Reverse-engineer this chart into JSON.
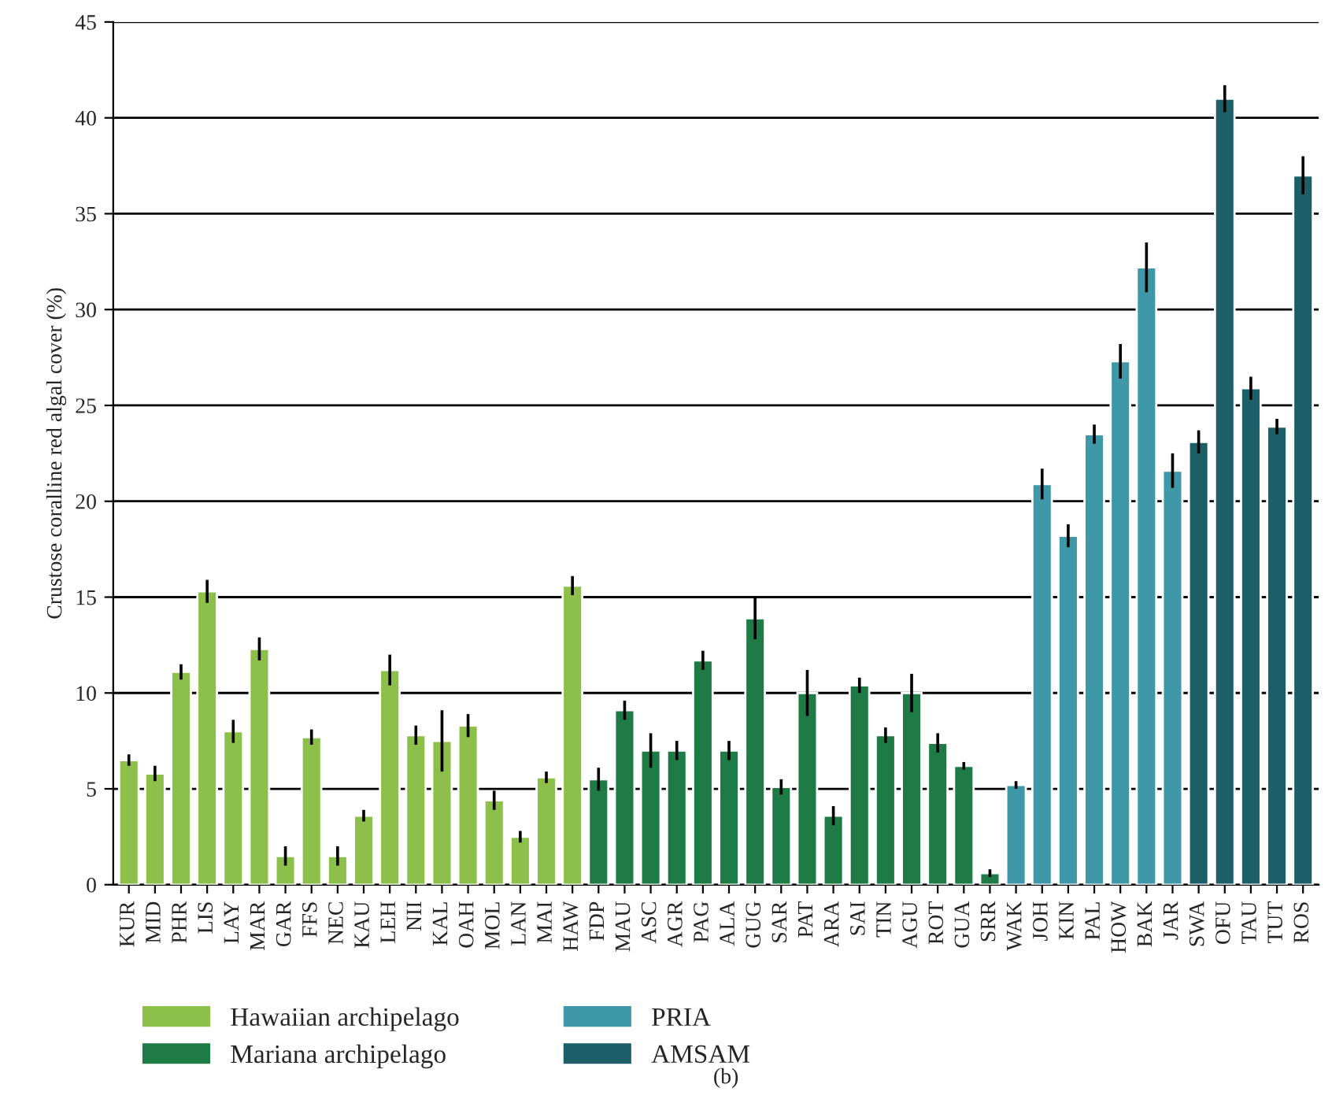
{
  "chart_data": {
    "type": "bar",
    "ylabel": "Crustose coralline red algal cover (%)",
    "annotations": [
      "(b)"
    ],
    "categories": [
      "KUR",
      "MID",
      "PHR",
      "LIS",
      "LAY",
      "MAR",
      "GAR",
      "FFS",
      "NEC",
      "KAU",
      "LEH",
      "NII",
      "KAL",
      "OAH",
      "MOL",
      "LAN",
      "MAI",
      "HAW",
      "FDP",
      "MAU",
      "ASC",
      "AGR",
      "PAG",
      "ALA",
      "GUG",
      "SAR",
      "PAT",
      "ARA",
      "SAI",
      "TIN",
      "AGU",
      "ROT",
      "GUA",
      "SRR",
      "WAK",
      "JOH",
      "KIN",
      "PAL",
      "HOW",
      "BAK",
      "JAR",
      "SWA",
      "OFU",
      "TAU",
      "TUT",
      "ROS"
    ],
    "series": [
      {
        "name": "Hawaiian archipelago",
        "color": "#8dc04a",
        "values": [
          6.5,
          5.8,
          11.1,
          15.3,
          8.0,
          12.3,
          1.5,
          7.7,
          1.5,
          3.6,
          11.2,
          7.8,
          7.5,
          8.3,
          4.4,
          2.5,
          5.6,
          15.6,
          null,
          null,
          null,
          null,
          null,
          null,
          null,
          null,
          null,
          null,
          null,
          null,
          null,
          null,
          null,
          null,
          null,
          null,
          null,
          null,
          null,
          null,
          null,
          null,
          null,
          null,
          null,
          null
        ],
        "errors": [
          0.3,
          0.4,
          0.4,
          0.6,
          0.6,
          0.6,
          0.5,
          0.4,
          0.5,
          0.3,
          0.8,
          0.5,
          1.6,
          0.6,
          0.5,
          0.3,
          0.3,
          0.5,
          null,
          null,
          null,
          null,
          null,
          null,
          null,
          null,
          null,
          null,
          null,
          null,
          null,
          null,
          null,
          null,
          null,
          null,
          null,
          null,
          null,
          null,
          null,
          null,
          null,
          null,
          null,
          null
        ]
      },
      {
        "name": "Mariana archipelago",
        "color": "#1e7b45",
        "values": [
          null,
          null,
          null,
          null,
          null,
          null,
          null,
          null,
          null,
          null,
          null,
          null,
          null,
          null,
          null,
          null,
          null,
          null,
          5.5,
          9.1,
          7.0,
          7.0,
          11.7,
          7.0,
          13.9,
          5.1,
          10.0,
          3.6,
          10.4,
          7.8,
          10.0,
          7.4,
          6.2,
          0.6,
          null,
          null,
          null,
          null,
          null,
          null,
          null,
          null,
          null,
          null,
          null,
          null
        ],
        "errors": [
          null,
          null,
          null,
          null,
          null,
          null,
          null,
          null,
          null,
          null,
          null,
          null,
          null,
          null,
          null,
          null,
          null,
          null,
          0.6,
          0.5,
          0.9,
          0.5,
          0.5,
          0.5,
          1.1,
          0.4,
          1.2,
          0.5,
          0.4,
          0.4,
          1.0,
          0.5,
          0.2,
          0.2,
          null,
          null,
          null,
          null,
          null,
          null,
          null,
          null,
          null,
          null,
          null,
          null
        ]
      },
      {
        "name": "PRIA",
        "color": "#3f98a8",
        "values": [
          null,
          null,
          null,
          null,
          null,
          null,
          null,
          null,
          null,
          null,
          null,
          null,
          null,
          null,
          null,
          null,
          null,
          null,
          null,
          null,
          null,
          null,
          null,
          null,
          null,
          null,
          null,
          null,
          null,
          null,
          null,
          null,
          null,
          null,
          5.2,
          20.9,
          18.2,
          23.5,
          27.3,
          32.2,
          21.6,
          null,
          null,
          null,
          null,
          null
        ],
        "errors": [
          null,
          null,
          null,
          null,
          null,
          null,
          null,
          null,
          null,
          null,
          null,
          null,
          null,
          null,
          null,
          null,
          null,
          null,
          null,
          null,
          null,
          null,
          null,
          null,
          null,
          null,
          null,
          null,
          null,
          null,
          null,
          null,
          null,
          null,
          0.2,
          0.8,
          0.6,
          0.5,
          0.9,
          1.3,
          0.9,
          null,
          null,
          null,
          null,
          null
        ]
      },
      {
        "name": "AMSAM",
        "color": "#1c5f68",
        "values": [
          null,
          null,
          null,
          null,
          null,
          null,
          null,
          null,
          null,
          null,
          null,
          null,
          null,
          null,
          null,
          null,
          null,
          null,
          null,
          null,
          null,
          null,
          null,
          null,
          null,
          null,
          null,
          null,
          null,
          null,
          null,
          null,
          null,
          null,
          null,
          null,
          null,
          null,
          null,
          null,
          null,
          23.1,
          41.0,
          25.9,
          23.9,
          37.0
        ],
        "errors": [
          null,
          null,
          null,
          null,
          null,
          null,
          null,
          null,
          null,
          null,
          null,
          null,
          null,
          null,
          null,
          null,
          null,
          null,
          null,
          null,
          null,
          null,
          null,
          null,
          null,
          null,
          null,
          null,
          null,
          null,
          null,
          null,
          null,
          null,
          null,
          null,
          null,
          null,
          null,
          null,
          null,
          0.6,
          0.7,
          0.6,
          0.4,
          1.0
        ]
      }
    ],
    "ylim": [
      0,
      45
    ],
    "yticks": [
      0,
      5,
      10,
      15,
      20,
      25,
      30,
      35,
      40,
      45
    ],
    "grid": "y",
    "legend": "bottom"
  }
}
